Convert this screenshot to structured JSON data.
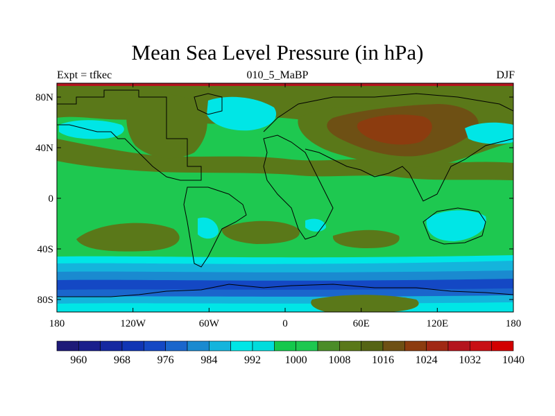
{
  "title": "Mean Sea Level Pressure (in hPa)",
  "subtitle_left": "Expt = tfkec",
  "subtitle_center": "010_5_MaBP",
  "subtitle_right": "DJF",
  "lat_ticks": [
    "80N",
    "40N",
    "0",
    "40S",
    "80S"
  ],
  "lon_ticks": [
    "180",
    "120W",
    "60W",
    "0",
    "60E",
    "120E",
    "180"
  ],
  "colorbar": {
    "colors": [
      "#1e1a78",
      "#1a1f8c",
      "#1528a0",
      "#1035b4",
      "#1448c4",
      "#1a66cc",
      "#1a8ad0",
      "#14b4dc",
      "#00e6e6",
      "#00dcdc",
      "#14c84c",
      "#1ec850",
      "#4b8c28",
      "#5a7819",
      "#556414",
      "#6e5014",
      "#8c3c0f",
      "#a02814",
      "#b4141e",
      "#c80f14",
      "#d20000"
    ],
    "labels": [
      "960",
      "968",
      "976",
      "984",
      "992",
      "1000",
      "1008",
      "1016",
      "1024",
      "1032",
      "1040"
    ]
  },
  "map_colors": {
    "background": "#1ec850",
    "band_1008": "#14c84c",
    "band_1016": "#5a7819",
    "band_1024": "#6e5014",
    "band_1032": "#8c3c0f",
    "band_1040": "#b4141e",
    "band_1000": "#00e6e6",
    "band_992": "#14b4dc",
    "band_984": "#1a8ad0",
    "band_976": "#1a66cc",
    "band_968": "#1448c4",
    "coast": "#000000"
  }
}
